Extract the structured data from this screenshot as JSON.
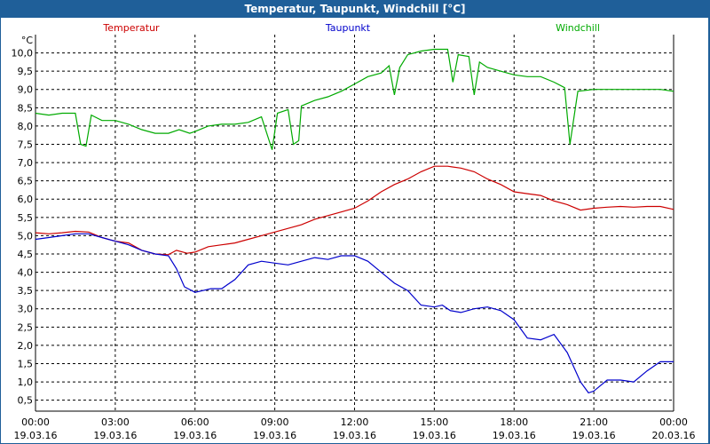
{
  "window": {
    "title": "Temperatur, Taupunkt, Windchill [°C]"
  },
  "chart_data": {
    "type": "line",
    "title": "Temperatur, Taupunkt, Windchill [°C]",
    "ylabel": "°C",
    "ylim": [
      0.2,
      10.5
    ],
    "xlim": [
      0,
      24
    ],
    "grid": true,
    "legend_placement": "top",
    "y_ticks": [
      "0,5",
      "1,0",
      "1,5",
      "2,0",
      "2,5",
      "3,0",
      "3,5",
      "4,0",
      "4,5",
      "5,0",
      "5,5",
      "6,0",
      "6,5",
      "7,0",
      "7,5",
      "8,0",
      "8,5",
      "9,0",
      "9,5",
      "10,0"
    ],
    "y_tick_values": [
      0.5,
      1.0,
      1.5,
      2.0,
      2.5,
      3.0,
      3.5,
      4.0,
      4.5,
      5.0,
      5.5,
      6.0,
      6.5,
      7.0,
      7.5,
      8.0,
      8.5,
      9.0,
      9.5,
      10.0
    ],
    "x_ticks": [
      {
        "time": "00:00",
        "date": "19.03.16"
      },
      {
        "time": "03:00",
        "date": "19.03.16"
      },
      {
        "time": "06:00",
        "date": "19.03.16"
      },
      {
        "time": "09:00",
        "date": "19.03.16"
      },
      {
        "time": "12:00",
        "date": "19.03.16"
      },
      {
        "time": "15:00",
        "date": "19.03.16"
      },
      {
        "time": "18:00",
        "date": "19.03.16"
      },
      {
        "time": "21:00",
        "date": "19.03.16"
      },
      {
        "time": "00:00",
        "date": "20.03.16"
      }
    ],
    "series": [
      {
        "name": "Temperatur",
        "color": "#cc0000",
        "points": [
          [
            0,
            5.08
          ],
          [
            0.5,
            5.05
          ],
          [
            1,
            5.08
          ],
          [
            1.5,
            5.12
          ],
          [
            2,
            5.1
          ],
          [
            2.5,
            4.95
          ],
          [
            3,
            4.85
          ],
          [
            3.5,
            4.8
          ],
          [
            4,
            4.6
          ],
          [
            4.5,
            4.5
          ],
          [
            5,
            4.48
          ],
          [
            5.3,
            4.6
          ],
          [
            5.7,
            4.52
          ],
          [
            6,
            4.55
          ],
          [
            6.5,
            4.7
          ],
          [
            7,
            4.75
          ],
          [
            7.5,
            4.8
          ],
          [
            8,
            4.9
          ],
          [
            8.5,
            5.0
          ],
          [
            9,
            5.1
          ],
          [
            9.5,
            5.2
          ],
          [
            10,
            5.3
          ],
          [
            10.5,
            5.45
          ],
          [
            11,
            5.55
          ],
          [
            11.5,
            5.65
          ],
          [
            12,
            5.75
          ],
          [
            12.5,
            5.95
          ],
          [
            13,
            6.2
          ],
          [
            13.5,
            6.4
          ],
          [
            14,
            6.55
          ],
          [
            14.5,
            6.75
          ],
          [
            15,
            6.9
          ],
          [
            15.5,
            6.9
          ],
          [
            16,
            6.85
          ],
          [
            16.5,
            6.75
          ],
          [
            17,
            6.55
          ],
          [
            17.5,
            6.4
          ],
          [
            18,
            6.2
          ],
          [
            18.5,
            6.15
          ],
          [
            19,
            6.1
          ],
          [
            19.5,
            5.95
          ],
          [
            20,
            5.85
          ],
          [
            20.5,
            5.7
          ],
          [
            21,
            5.75
          ],
          [
            21.5,
            5.78
          ],
          [
            22,
            5.8
          ],
          [
            22.5,
            5.78
          ],
          [
            23,
            5.8
          ],
          [
            23.5,
            5.8
          ],
          [
            24,
            5.72
          ]
        ]
      },
      {
        "name": "Taupunkt",
        "color": "#0000cc",
        "points": [
          [
            0,
            4.9
          ],
          [
            0.5,
            4.95
          ],
          [
            1,
            5.0
          ],
          [
            1.5,
            5.05
          ],
          [
            2,
            5.05
          ],
          [
            2.5,
            4.95
          ],
          [
            3,
            4.85
          ],
          [
            3.5,
            4.75
          ],
          [
            4,
            4.6
          ],
          [
            4.5,
            4.5
          ],
          [
            5,
            4.45
          ],
          [
            5.3,
            4.1
          ],
          [
            5.6,
            3.6
          ],
          [
            6,
            3.45
          ],
          [
            6.3,
            3.5
          ],
          [
            6.6,
            3.55
          ],
          [
            7,
            3.55
          ],
          [
            7.5,
            3.8
          ],
          [
            8,
            4.2
          ],
          [
            8.5,
            4.3
          ],
          [
            9,
            4.25
          ],
          [
            9.5,
            4.2
          ],
          [
            10,
            4.3
          ],
          [
            10.5,
            4.4
          ],
          [
            11,
            4.35
          ],
          [
            11.5,
            4.45
          ],
          [
            12,
            4.45
          ],
          [
            12.5,
            4.3
          ],
          [
            13,
            4.0
          ],
          [
            13.5,
            3.7
          ],
          [
            14,
            3.5
          ],
          [
            14.5,
            3.1
          ],
          [
            15,
            3.05
          ],
          [
            15.3,
            3.1
          ],
          [
            15.6,
            2.95
          ],
          [
            16,
            2.9
          ],
          [
            16.5,
            3.0
          ],
          [
            17,
            3.05
          ],
          [
            17.5,
            2.95
          ],
          [
            18,
            2.7
          ],
          [
            18.5,
            2.2
          ],
          [
            19,
            2.15
          ],
          [
            19.5,
            2.3
          ],
          [
            20,
            1.8
          ],
          [
            20.5,
            1.0
          ],
          [
            20.8,
            0.7
          ],
          [
            21,
            0.75
          ],
          [
            21.5,
            1.05
          ],
          [
            22,
            1.05
          ],
          [
            22.5,
            1.0
          ],
          [
            23,
            1.3
          ],
          [
            23.5,
            1.55
          ],
          [
            24,
            1.55
          ]
        ]
      },
      {
        "name": "Windchill",
        "color": "#00aa00",
        "points": [
          [
            0,
            8.35
          ],
          [
            0.5,
            8.3
          ],
          [
            1,
            8.35
          ],
          [
            1.5,
            8.35
          ],
          [
            1.7,
            7.5
          ],
          [
            1.9,
            7.45
          ],
          [
            2.1,
            8.3
          ],
          [
            2.5,
            8.15
          ],
          [
            3,
            8.15
          ],
          [
            3.5,
            8.05
          ],
          [
            4,
            7.9
          ],
          [
            4.5,
            7.8
          ],
          [
            5,
            7.8
          ],
          [
            5.4,
            7.9
          ],
          [
            5.8,
            7.8
          ],
          [
            6,
            7.85
          ],
          [
            6.5,
            8.0
          ],
          [
            7,
            8.05
          ],
          [
            7.5,
            8.05
          ],
          [
            8,
            8.1
          ],
          [
            8.5,
            8.25
          ],
          [
            8.9,
            7.35
          ],
          [
            9.1,
            8.35
          ],
          [
            9.5,
            8.45
          ],
          [
            9.7,
            7.5
          ],
          [
            9.9,
            7.6
          ],
          [
            10,
            8.55
          ],
          [
            10.5,
            8.7
          ],
          [
            11,
            8.8
          ],
          [
            11.5,
            8.95
          ],
          [
            12,
            9.15
          ],
          [
            12.5,
            9.35
          ],
          [
            13,
            9.45
          ],
          [
            13.3,
            9.65
          ],
          [
            13.5,
            8.85
          ],
          [
            13.7,
            9.6
          ],
          [
            14,
            9.95
          ],
          [
            14.5,
            10.05
          ],
          [
            15,
            10.1
          ],
          [
            15.5,
            10.1
          ],
          [
            15.7,
            9.2
          ],
          [
            15.9,
            9.95
          ],
          [
            16.3,
            9.9
          ],
          [
            16.5,
            8.85
          ],
          [
            16.7,
            9.75
          ],
          [
            17,
            9.6
          ],
          [
            17.5,
            9.5
          ],
          [
            18,
            9.4
          ],
          [
            18.5,
            9.35
          ],
          [
            19,
            9.35
          ],
          [
            19.5,
            9.2
          ],
          [
            19.9,
            9.05
          ],
          [
            20.1,
            7.5
          ],
          [
            20.4,
            8.95
          ],
          [
            21,
            9.0
          ],
          [
            21.5,
            9.0
          ],
          [
            22,
            9.0
          ],
          [
            22.5,
            9.0
          ],
          [
            23,
            9.0
          ],
          [
            23.5,
            9.0
          ],
          [
            24,
            8.95
          ]
        ]
      }
    ]
  }
}
